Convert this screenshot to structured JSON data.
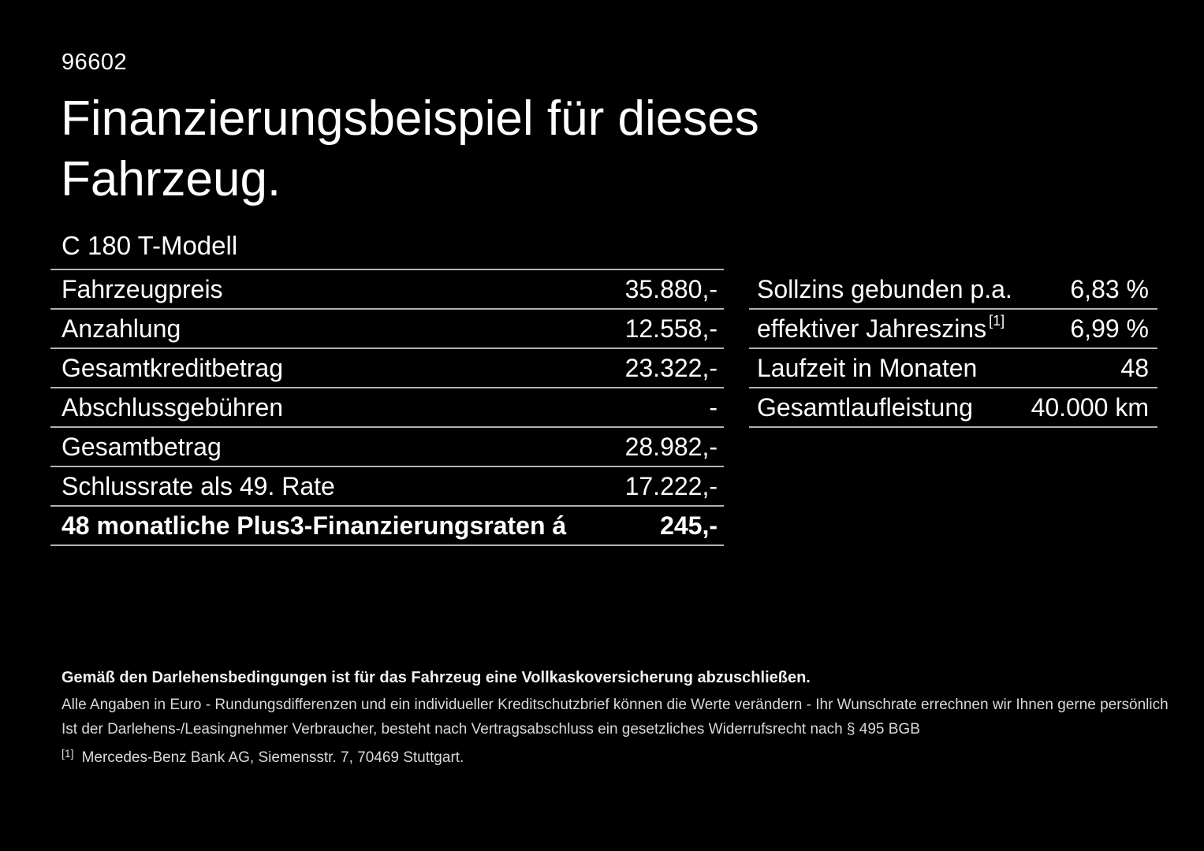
{
  "page": {
    "vehicle_id": "96602",
    "title_line1": "Finanzierungsbeispiel für dieses",
    "title_line2": "Fahrzeug.",
    "model": "C 180 T-Modell"
  },
  "left_table": {
    "rows": [
      {
        "label": "Fahrzeugpreis",
        "value": "35.880,-"
      },
      {
        "label": "Anzahlung",
        "value": "12.558,-"
      },
      {
        "label": "Gesamtkreditbetrag",
        "value": "23.322,-"
      },
      {
        "label": "Abschlussgebühren",
        "value": "-"
      },
      {
        "label": "Gesamtbetrag",
        "value": "28.982,-"
      },
      {
        "label": "Schlussrate als 49. Rate",
        "value": "17.222,-"
      },
      {
        "label": "48 monatliche Plus3-Finanzierungsraten á",
        "value": "245,-"
      }
    ]
  },
  "right_table": {
    "rows": [
      {
        "label": "Sollzins gebunden p.a.",
        "value": "6,83 %"
      },
      {
        "label": "effektiver Jahreszins",
        "label_sup": "[1]",
        "value": "6,99 %"
      },
      {
        "label": "Laufzeit in Monaten",
        "value": "48"
      },
      {
        "label": "Gesamtlaufleistung",
        "value": "40.000 km"
      }
    ]
  },
  "footnotes": {
    "bold_line": "Gemäß den Darlehensbedingungen ist für das Fahrzeug eine Vollkaskoversicherung abzuschließen.",
    "line2": "Alle Angaben in Euro - Rundungsdifferenzen und ein individueller Kreditschutzbrief können die Werte verändern - Ihr Wunschrate errechnen wir Ihnen gerne persönlich",
    "line3": "Ist der Darlehens-/Leasingnehmer Verbraucher, besteht nach Vertragsabschluss ein gesetzliches Widerrufsrecht nach § 495 BGB",
    "ref_marker": "[1]",
    "ref_text": "Mercedes-Benz Bank AG, Siemensstr. 7, 70469 Stuttgart."
  },
  "colors": {
    "background": "#000000",
    "text": "#ffffff",
    "divider": "#b2b2b2",
    "fine_print": "#d9d9d9"
  }
}
